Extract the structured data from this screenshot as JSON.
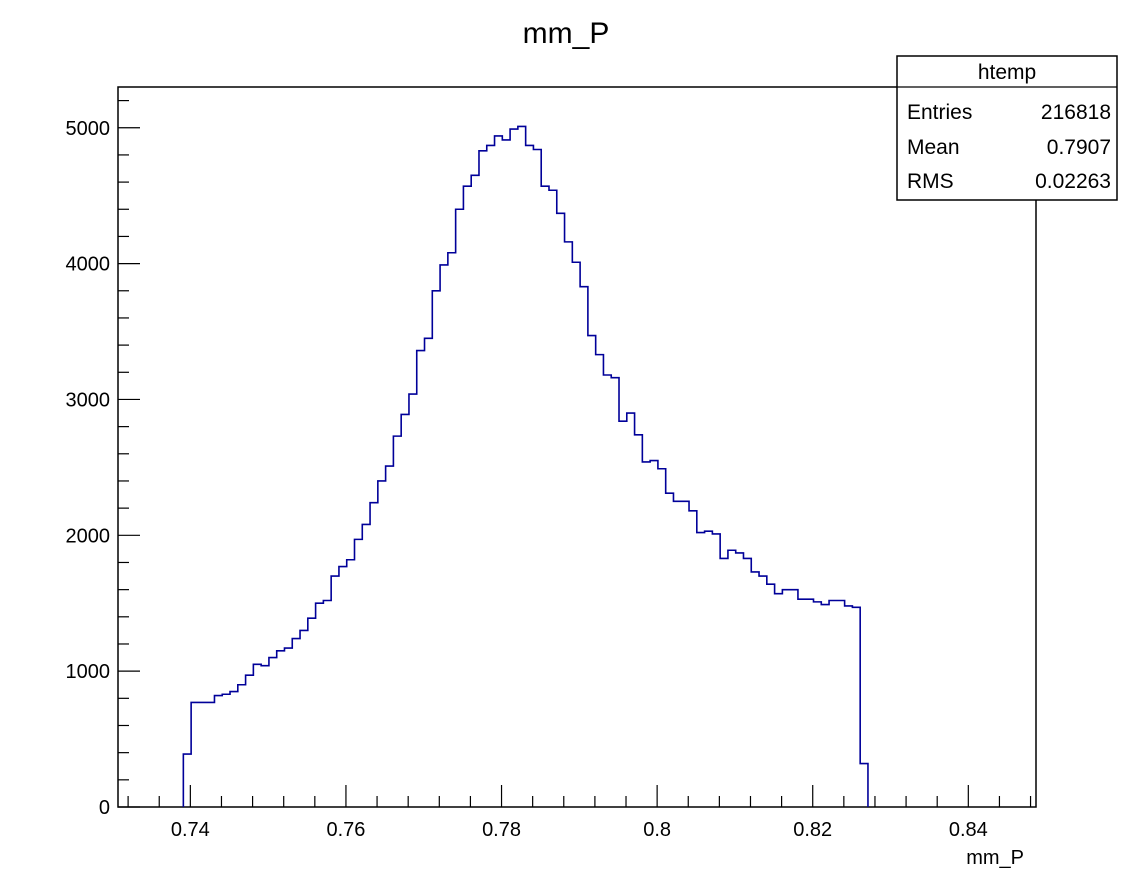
{
  "chart_data": {
    "type": "histogram",
    "title": "mm_P",
    "xlabel": "mm_P",
    "ylabel": "",
    "xlim": [
      0.7307,
      0.8487
    ],
    "ylim": [
      0,
      5300
    ],
    "grid": false,
    "x_ticks": [
      0.74,
      0.76,
      0.78,
      0.8,
      0.82,
      0.84
    ],
    "x_tick_labels": [
      "0.74",
      "0.76",
      "0.78",
      "0.8",
      "0.82",
      "0.84"
    ],
    "y_ticks": [
      0,
      1000,
      2000,
      3000,
      4000,
      5000
    ],
    "y_tick_labels": [
      "0",
      "1000",
      "2000",
      "3000",
      "4000",
      "5000"
    ],
    "bin_edges_start": 0.7391,
    "bin_width": 0.001,
    "bin_values": [
      390,
      770,
      770,
      770,
      820,
      830,
      850,
      900,
      970,
      1050,
      1040,
      1100,
      1150,
      1170,
      1240,
      1300,
      1390,
      1500,
      1520,
      1700,
      1770,
      1820,
      1970,
      2080,
      2240,
      2400,
      2510,
      2730,
      2890,
      3040,
      3360,
      3450,
      3800,
      3990,
      4080,
      4400,
      4570,
      4650,
      4830,
      4870,
      4940,
      4910,
      4990,
      5010,
      4870,
      4840,
      4570,
      4540,
      4370,
      4160,
      4010,
      3830,
      3470,
      3330,
      3180,
      3160,
      2840,
      2900,
      2740,
      2540,
      2550,
      2490,
      2310,
      2250,
      2250,
      2180,
      2020,
      2030,
      2010,
      1830,
      1890,
      1870,
      1830,
      1730,
      1700,
      1640,
      1570,
      1600,
      1600,
      1530,
      1530,
      1510,
      1490,
      1520,
      1520,
      1480,
      1470,
      320
    ],
    "line_color": "#000099",
    "stats_box": {
      "placement": "top-right",
      "name": "htemp",
      "rows": [
        {
          "label": "Entries",
          "value": "216818"
        },
        {
          "label": "Mean",
          "value": "0.7907"
        },
        {
          "label": "RMS",
          "value": "0.02263"
        }
      ]
    }
  }
}
